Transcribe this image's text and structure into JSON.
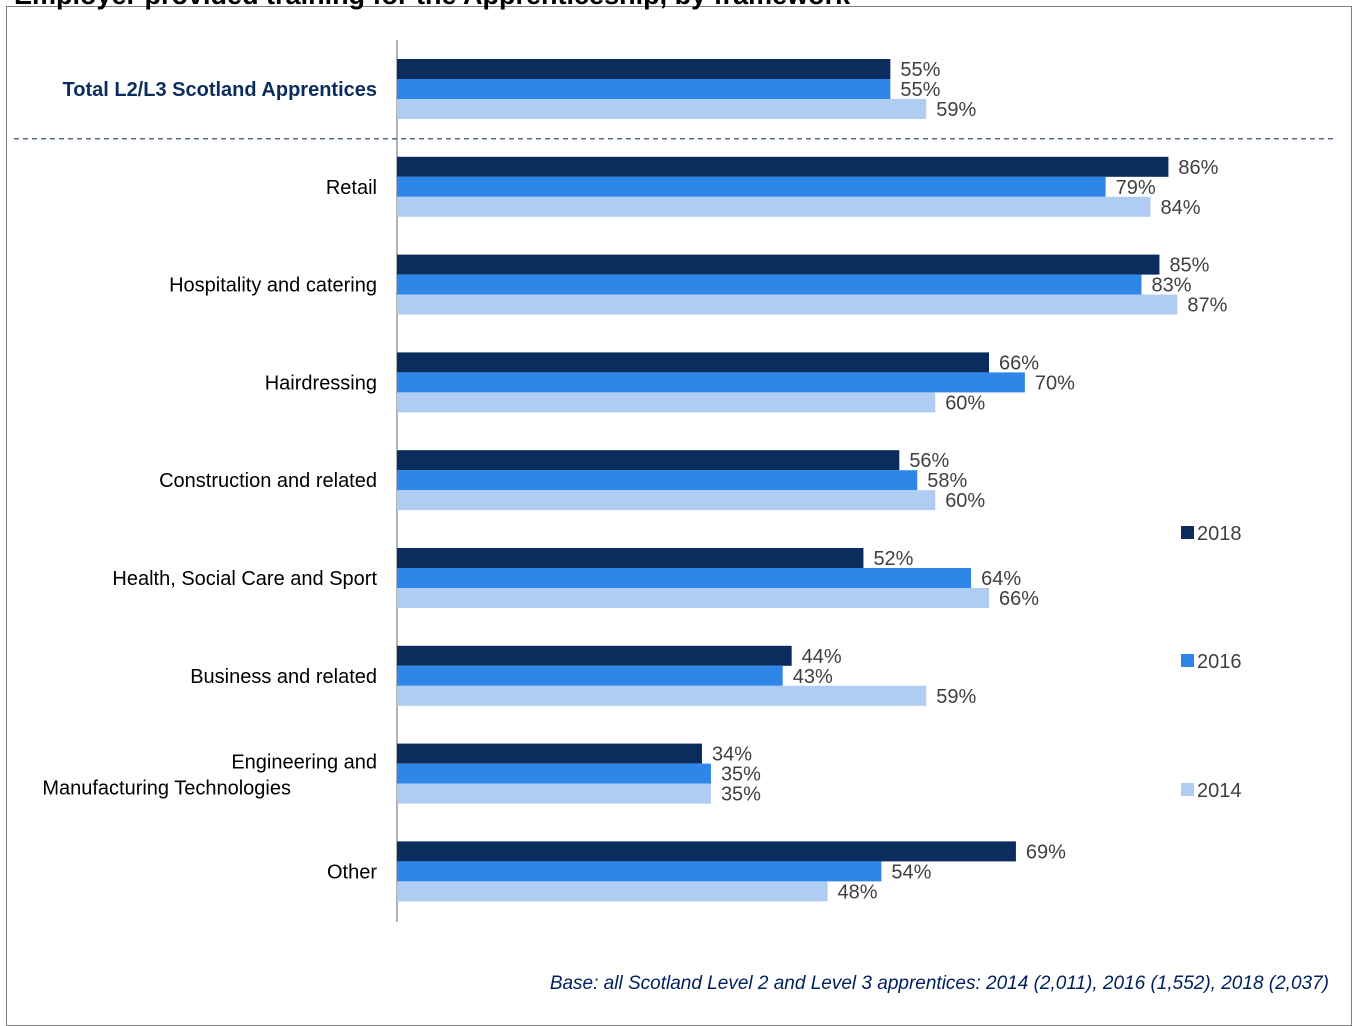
{
  "title": "Employer provided training for the Apprenticeship, by framework",
  "footnote": "Base: all Scotland Level 2 and Level 3 apprentices: 2014 (2,011), 2016 (1,552), 2018 (2,037)",
  "chart_data": {
    "type": "bar",
    "orientation": "horizontal",
    "categories": [
      "Total L2/L3 Scotland Apprentices",
      "Retail",
      "Hospitality and catering",
      "Hairdressing",
      "Construction and related",
      "Health, Social Care and Sport",
      "Business and related",
      "Engineering and Manufacturing Technologies",
      "Other"
    ],
    "series": [
      {
        "name": "2018",
        "color": "#0b2d5e",
        "values": [
          55,
          86,
          85,
          66,
          56,
          52,
          44,
          34,
          69
        ]
      },
      {
        "name": "2016",
        "color": "#2e86e8",
        "values": [
          55,
          79,
          83,
          70,
          58,
          64,
          43,
          35,
          54
        ]
      },
      {
        "name": "2014",
        "color": "#afccf2",
        "values": [
          59,
          84,
          87,
          60,
          60,
          66,
          59,
          35,
          48
        ]
      }
    ],
    "value_suffix": "%",
    "xlim": [
      0,
      100
    ],
    "grid": false,
    "legend_position": "right",
    "highlight_first_category": true
  }
}
